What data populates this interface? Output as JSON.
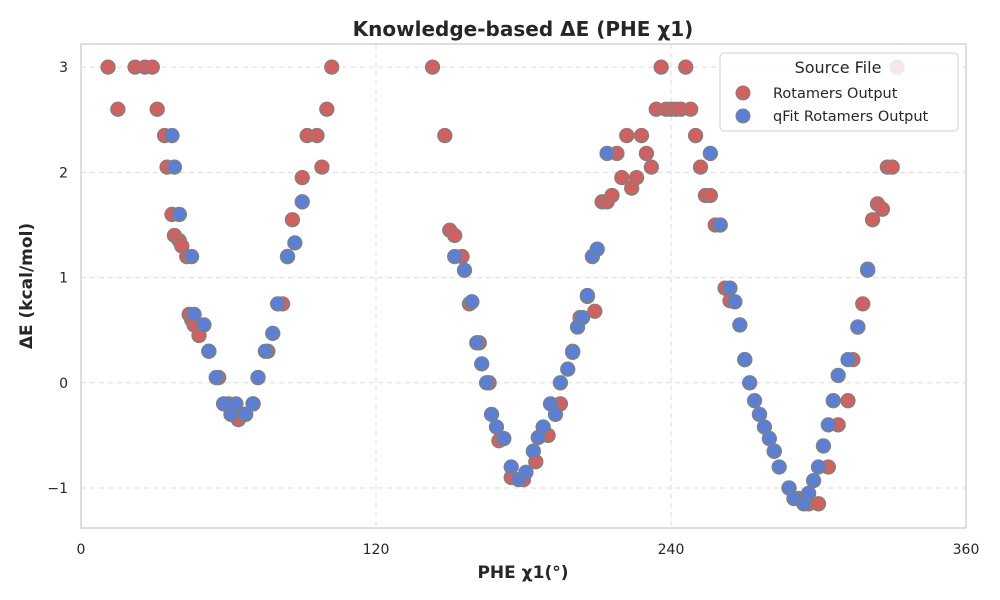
{
  "chart_data": {
    "type": "scatter",
    "title": "Knowledge-based ΔE (PHE χ1)",
    "xlabel": "PHE χ1(°)",
    "ylabel": "ΔE (kcal/mol)",
    "xlim": [
      0,
      360
    ],
    "ylim": [
      -1.38,
      3.22
    ],
    "xticks": [
      0,
      120,
      240,
      360
    ],
    "xtick_labels": [
      "0",
      "120",
      "240",
      "360"
    ],
    "yticks": [
      -1,
      0,
      1,
      2,
      3
    ],
    "ytick_labels": [
      "−1",
      "0",
      "1",
      "2",
      "3"
    ],
    "grid": true,
    "legend": {
      "title": "Source File",
      "placement": "top-right"
    },
    "marker_edge_color": "#808080",
    "series": [
      {
        "name": "Rotamers Output",
        "color": "#d1605e",
        "x": [
          11,
          15,
          22,
          26,
          29,
          31,
          34,
          35,
          37,
          38,
          40,
          41,
          43,
          44,
          45,
          46,
          48,
          52,
          56,
          60,
          62,
          64,
          66,
          70,
          72,
          76,
          82,
          84,
          86,
          90,
          92,
          96,
          98,
          100,
          102,
          143,
          148,
          150,
          152,
          155,
          158,
          162,
          166,
          170,
          175,
          180,
          185,
          190,
          195,
          200,
          203,
          206,
          209,
          212,
          214,
          216,
          218,
          220,
          222,
          224,
          226,
          228,
          230,
          232,
          234,
          236,
          238,
          240,
          242,
          244,
          246,
          248,
          250,
          252,
          254,
          256,
          258,
          260,
          262,
          264,
          270,
          276,
          282,
          288,
          292,
          296,
          300,
          304,
          308,
          312,
          314,
          316,
          318,
          320,
          322,
          324,
          326,
          328,
          330,
          332
        ],
        "y": [
          3.0,
          2.6,
          3.0,
          3.0,
          3.0,
          2.6,
          2.35,
          2.05,
          1.6,
          1.4,
          1.35,
          1.3,
          1.2,
          0.65,
          0.6,
          0.55,
          0.45,
          0.3,
          0.05,
          -0.2,
          -0.3,
          -0.35,
          -0.3,
          -0.2,
          0.05,
          0.3,
          0.75,
          1.2,
          1.55,
          1.95,
          2.35,
          2.35,
          2.05,
          2.6,
          3.0,
          3.0,
          2.35,
          1.45,
          1.4,
          1.2,
          0.75,
          0.38,
          0.0,
          -0.55,
          -0.9,
          -0.92,
          -0.75,
          -0.5,
          -0.2,
          0.3,
          0.62,
          0.82,
          0.68,
          1.72,
          1.72,
          1.78,
          2.18,
          1.95,
          2.35,
          1.85,
          1.95,
          2.35,
          2.18,
          2.05,
          2.6,
          3.0,
          2.6,
          2.6,
          2.6,
          2.6,
          3.0,
          2.6,
          2.35,
          2.05,
          1.78,
          1.78,
          1.5,
          1.5,
          0.9,
          0.78,
          0.22,
          -0.3,
          -0.65,
          -1.0,
          -1.1,
          -1.15,
          -1.15,
          -0.8,
          -0.4,
          -0.17,
          0.22,
          0.53,
          0.75,
          1.08,
          1.55,
          1.7,
          1.65,
          2.05,
          2.05,
          3.0
        ]
      },
      {
        "name": "qFit Rotamers Output",
        "color": "#5a7fd4",
        "x": [
          37,
          38,
          40,
          45,
          46,
          50,
          52,
          55,
          58,
          61,
          63,
          67,
          70,
          72,
          75,
          78,
          80,
          84,
          87,
          90,
          152,
          156,
          159,
          161,
          163,
          165,
          167,
          169,
          172,
          175,
          178,
          181,
          184,
          186,
          188,
          191,
          193,
          195,
          198,
          200,
          202,
          204,
          206,
          208,
          210,
          214,
          256,
          260,
          264,
          266,
          268,
          270,
          272,
          274,
          276,
          278,
          280,
          282,
          284,
          288,
          290,
          294,
          296,
          298,
          300,
          302,
          304,
          306,
          308,
          312,
          316,
          320
        ],
        "y": [
          2.35,
          2.05,
          1.6,
          1.2,
          0.65,
          0.55,
          0.3,
          0.05,
          -0.2,
          -0.3,
          -0.2,
          -0.3,
          -0.2,
          0.05,
          0.3,
          0.47,
          0.75,
          1.2,
          1.33,
          1.72,
          1.2,
          1.07,
          0.77,
          0.38,
          0.18,
          0.0,
          -0.3,
          -0.42,
          -0.53,
          -0.8,
          -0.92,
          -0.85,
          -0.65,
          -0.52,
          -0.42,
          -0.2,
          -0.3,
          0.0,
          0.13,
          0.29,
          0.53,
          0.62,
          0.83,
          1.2,
          1.27,
          2.18,
          2.18,
          1.5,
          0.9,
          0.77,
          0.55,
          0.22,
          0.0,
          -0.17,
          -0.3,
          -0.42,
          -0.53,
          -0.65,
          -0.8,
          -1.0,
          -1.1,
          -1.15,
          -1.05,
          -0.93,
          -0.8,
          -0.6,
          -0.4,
          -0.17,
          0.07,
          0.22,
          0.53,
          1.07
        ]
      }
    ]
  }
}
